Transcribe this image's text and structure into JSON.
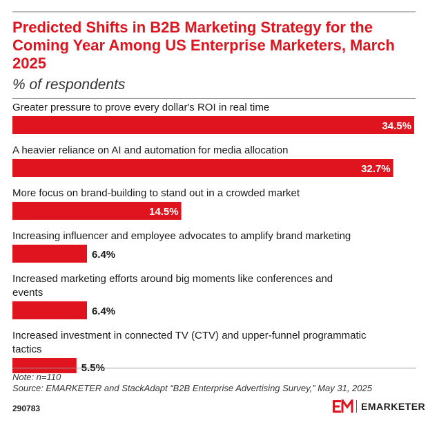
{
  "header": {
    "title": "Predicted Shifts in B2B Marketing Strategy for the Coming Year Among US Enterprise Marketers, March 2025",
    "subtitle": "% of respondents"
  },
  "footer": {
    "note": "Note: n=110",
    "source": "Source: EMARKETER and StackAdapt “B2B Enterprise Advertising Survey,” May 31, 2025",
    "chart_id": "290783",
    "brand_name": "EMARKETER",
    "logo_text": "EM"
  },
  "colors": {
    "bar": "#e0141e",
    "title": "#e0141e",
    "label_inside": "#ffffff",
    "label_outside": "#1a1a1a"
  },
  "chart_data": {
    "type": "bar",
    "orientation": "horizontal",
    "title": "Predicted Shifts in B2B Marketing Strategy for the Coming Year Among US Enterprise Marketers, March 2025",
    "subtitle": "% of respondents",
    "categories": [
      "Greater pressure to prove every dollar's ROI in real time",
      "A heavier reliance on AI and automation for media allocation",
      "More focus on brand-building to stand out in a crowded market",
      "Increasing influencer and employee advocates to amplify brand marketing",
      "Increased marketing efforts around big moments like conferences and events",
      "Increased investment in connected TV (CTV) and upper-funnel programmatic tactics"
    ],
    "category_lines": [
      [
        "Greater pressure to prove every dollar's ROI in real time"
      ],
      [
        "A heavier reliance on AI and automation for media allocation"
      ],
      [
        "More focus on brand-building to stand out in a crowded market"
      ],
      [
        "Increasing influencer and employee advocates to amplify brand marketing"
      ],
      [
        "Increased marketing efforts around big moments like conferences and",
        "events"
      ],
      [
        "Increased investment in connected TV (CTV) and upper-funnel programmatic",
        "tactics"
      ]
    ],
    "values": [
      34.5,
      32.7,
      14.5,
      6.4,
      6.4,
      5.5
    ],
    "value_labels": [
      "34.5%",
      "32.7%",
      "14.5%",
      "6.4%",
      "6.4%",
      "5.5%"
    ],
    "xlim": [
      0,
      34.5
    ],
    "grid": false,
    "legend": "none"
  }
}
